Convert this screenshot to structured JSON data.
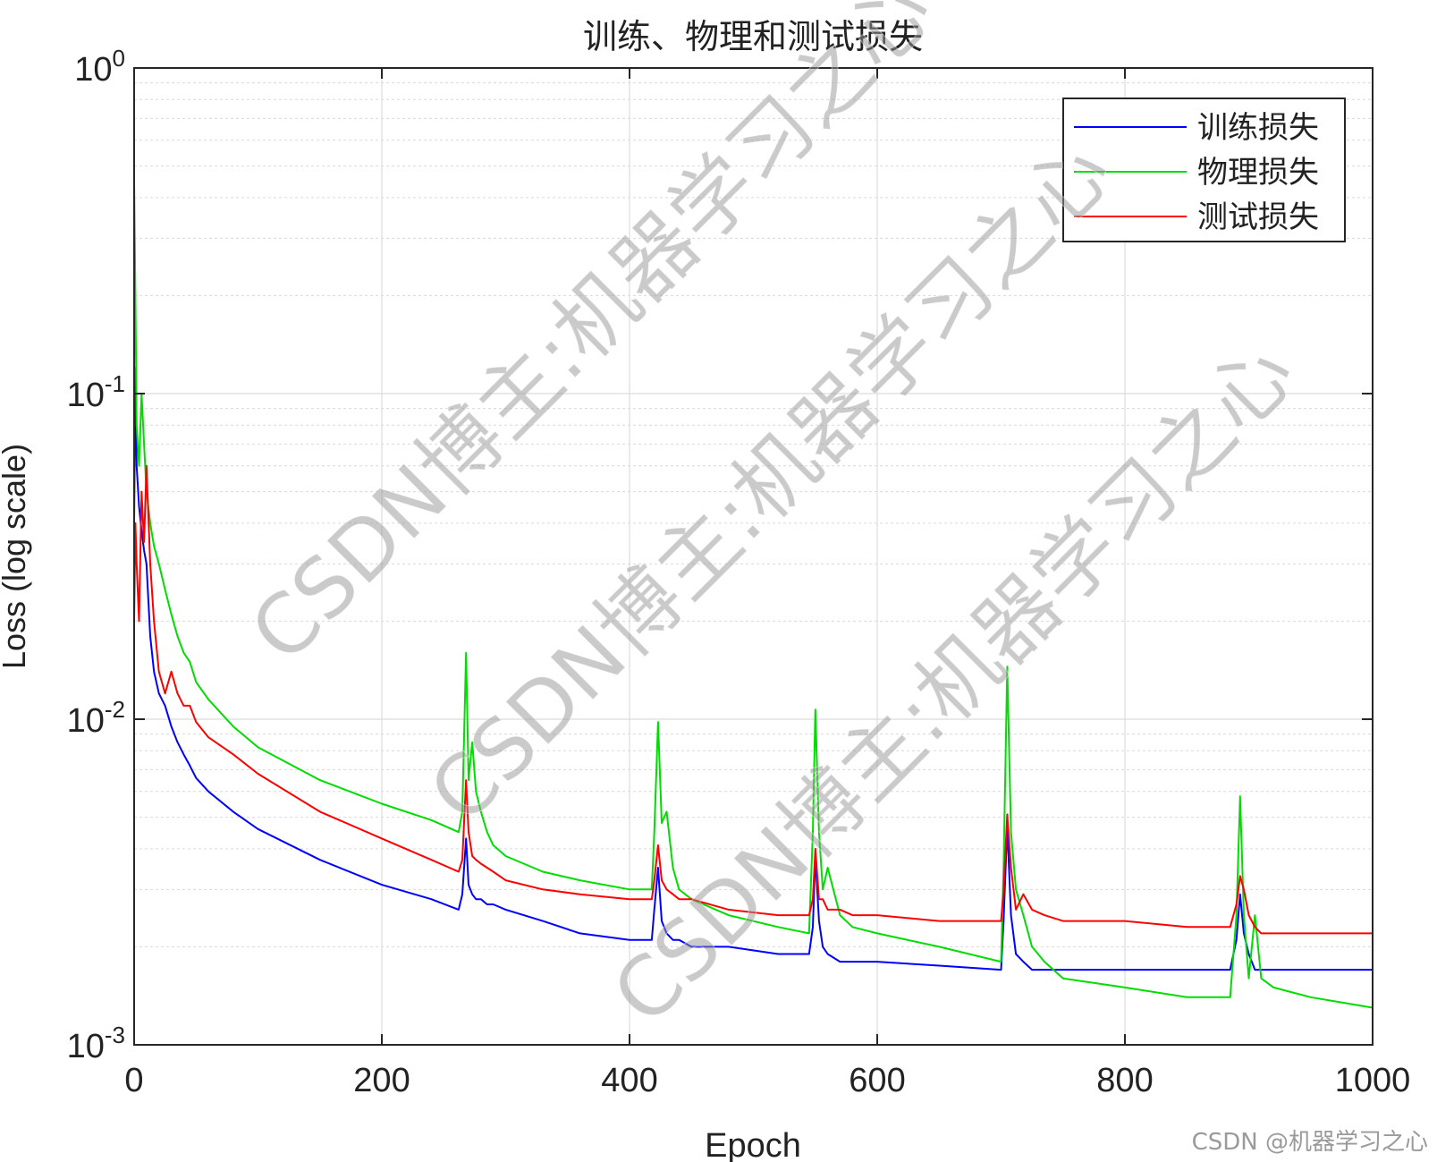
{
  "chart_data": {
    "type": "line",
    "title": "训练、物理和测试损失",
    "xlabel": "Epoch",
    "ylabel": "Loss (log scale)",
    "xlim": [
      0,
      1000
    ],
    "ylim": [
      0.001,
      1
    ],
    "yscale": "log",
    "grid": true,
    "minor_grid": true,
    "legend_position": "top-right",
    "x_ticks": [
      "0",
      "200",
      "400",
      "600",
      "800",
      "1000"
    ],
    "y_ticks": [
      {
        "base": "10",
        "exp": "-3",
        "value": 0.001
      },
      {
        "base": "10",
        "exp": "-2",
        "value": 0.01
      },
      {
        "base": "10",
        "exp": "-1",
        "value": 0.1
      },
      {
        "base": "10",
        "exp": "0",
        "value": 1
      }
    ],
    "x": [
      0,
      1,
      2,
      4,
      6,
      8,
      10,
      13,
      16,
      20,
      25,
      30,
      35,
      40,
      45,
      50,
      60,
      80,
      100,
      150,
      200,
      240,
      262,
      265,
      268,
      270,
      273,
      276,
      280,
      285,
      290,
      300,
      330,
      360,
      400,
      418,
      420,
      423,
      426,
      430,
      435,
      440,
      450,
      480,
      520,
      545,
      548,
      550,
      553,
      556,
      560,
      570,
      580,
      600,
      650,
      700,
      702,
      705,
      708,
      712,
      718,
      725,
      735,
      750,
      800,
      850,
      885,
      890,
      893,
      896,
      900,
      905,
      910,
      920,
      950,
      1000
    ],
    "series": [
      {
        "name": "训练损失",
        "color": "#0000ff",
        "values": [
          0.04,
          0.12,
          0.06,
          0.045,
          0.038,
          0.033,
          0.03,
          0.018,
          0.014,
          0.012,
          0.011,
          0.0095,
          0.0085,
          0.0078,
          0.0072,
          0.0066,
          0.006,
          0.0052,
          0.0046,
          0.0037,
          0.0031,
          0.0028,
          0.0026,
          0.0029,
          0.0043,
          0.0031,
          0.0029,
          0.0028,
          0.0028,
          0.0027,
          0.0027,
          0.0026,
          0.0024,
          0.0022,
          0.0021,
          0.0021,
          0.0026,
          0.0035,
          0.0024,
          0.0022,
          0.0021,
          0.0021,
          0.002,
          0.002,
          0.0019,
          0.0019,
          0.0023,
          0.0038,
          0.0024,
          0.002,
          0.0019,
          0.0018,
          0.0018,
          0.0018,
          0.00175,
          0.0017,
          0.0024,
          0.0047,
          0.0025,
          0.0019,
          0.0018,
          0.0017,
          0.0017,
          0.0017,
          0.0017,
          0.0017,
          0.0017,
          0.0021,
          0.0029,
          0.0022,
          0.0019,
          0.0017,
          0.0017,
          0.0017,
          0.0017,
          0.0017
        ]
      },
      {
        "name": "物理损失",
        "color": "#00dd00",
        "values": [
          0.45,
          0.2,
          0.08,
          0.06,
          0.1,
          0.07,
          0.05,
          0.04,
          0.034,
          0.03,
          0.025,
          0.021,
          0.018,
          0.016,
          0.015,
          0.013,
          0.0115,
          0.0095,
          0.0082,
          0.0065,
          0.0055,
          0.0049,
          0.0045,
          0.0052,
          0.016,
          0.0065,
          0.0085,
          0.006,
          0.0052,
          0.0045,
          0.0041,
          0.0038,
          0.0034,
          0.0032,
          0.003,
          0.003,
          0.0045,
          0.0098,
          0.0048,
          0.0052,
          0.0035,
          0.003,
          0.0028,
          0.0025,
          0.0023,
          0.0022,
          0.0045,
          0.0107,
          0.0045,
          0.003,
          0.0035,
          0.0025,
          0.0023,
          0.0022,
          0.002,
          0.0018,
          0.0035,
          0.0145,
          0.0045,
          0.003,
          0.0025,
          0.002,
          0.0018,
          0.0016,
          0.0015,
          0.0014,
          0.0014,
          0.0025,
          0.0058,
          0.0025,
          0.0016,
          0.0025,
          0.0016,
          0.0015,
          0.0014,
          0.0013
        ]
      },
      {
        "name": "测试损失",
        "color": "#ff0000",
        "values": [
          0.02,
          0.04,
          0.03,
          0.02,
          0.05,
          0.035,
          0.06,
          0.03,
          0.02,
          0.014,
          0.012,
          0.014,
          0.012,
          0.011,
          0.011,
          0.0098,
          0.0088,
          0.0078,
          0.0068,
          0.0052,
          0.0043,
          0.0037,
          0.0034,
          0.0037,
          0.0065,
          0.0045,
          0.0038,
          0.0037,
          0.0036,
          0.0035,
          0.0034,
          0.0032,
          0.003,
          0.0029,
          0.0028,
          0.0028,
          0.0032,
          0.0041,
          0.0032,
          0.003,
          0.0029,
          0.0028,
          0.0028,
          0.0026,
          0.0025,
          0.0025,
          0.0028,
          0.004,
          0.0028,
          0.0028,
          0.0026,
          0.0026,
          0.0025,
          0.0025,
          0.0024,
          0.0024,
          0.003,
          0.0051,
          0.0035,
          0.0026,
          0.0029,
          0.0026,
          0.0025,
          0.0024,
          0.0024,
          0.0023,
          0.0023,
          0.0027,
          0.0033,
          0.003,
          0.0025,
          0.0023,
          0.0022,
          0.0022,
          0.0022,
          0.0022
        ]
      }
    ]
  },
  "watermark": "CSDN博主:机器学习之心",
  "footer_mark": "CSDN @机器学习之心"
}
